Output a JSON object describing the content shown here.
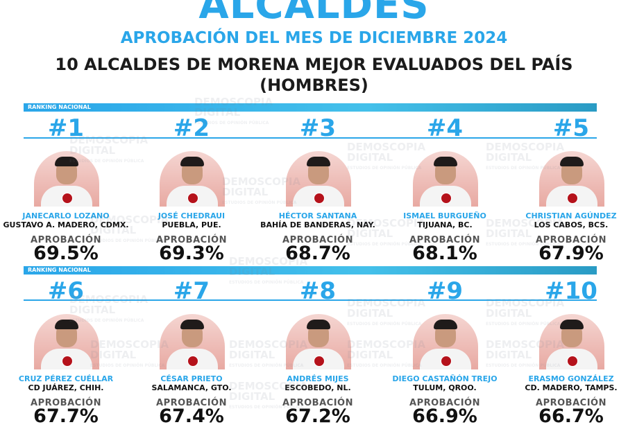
{
  "header": {
    "title": "ALCALDES",
    "subtitle": "APROBACIÓN DEL MES DE DICIEMBRE 2024",
    "headline_line1": "10 ALCALDES DE MORENA MEJOR EVALUADOS DEL PAÍS",
    "headline_line2": "(HOMBRES)"
  },
  "ranking_label": "RANKING NACIONAL",
  "approval_label": "APROBACIÓN",
  "watermark": {
    "line1": "DEMOSCOPIA",
    "line2": "DIGITAL",
    "tag": "ESTUDIOS DE OPINIÓN PÚBLICA"
  },
  "colors": {
    "accent": "#2aa6e9",
    "text": "#111111",
    "photo_bg": "#e8a9a2",
    "party_badge": "#b5121b"
  },
  "mayors": [
    {
      "rank": "#1",
      "name": "JANECARLO LOZANO",
      "city": "GUSTAVO A. MADERO, CDMX.",
      "approval": "69.5%"
    },
    {
      "rank": "#2",
      "name": "JOSÉ CHEDRAUI",
      "city": "PUEBLA, PUE.",
      "approval": "69.3%"
    },
    {
      "rank": "#3",
      "name": "HÉCTOR SANTANA",
      "city": "BAHÍA DE BANDERAS, NAY.",
      "approval": "68.7%"
    },
    {
      "rank": "#4",
      "name": "ISMAEL BURGUEÑO",
      "city": "TIJUANA, BC.",
      "approval": "68.1%"
    },
    {
      "rank": "#5",
      "name": "CHRISTIAN AGÚNDEZ",
      "city": "LOS CABOS, BCS.",
      "approval": "67.9%"
    },
    {
      "rank": "#6",
      "name": "CRUZ PÉREZ CUÉLLAR",
      "city": "CD JUÁREZ, CHIH.",
      "approval": "67.7%"
    },
    {
      "rank": "#7",
      "name": "CÉSAR PRIETO",
      "city": "SALAMANCA, GTO.",
      "approval": "67.4%"
    },
    {
      "rank": "#8",
      "name": "ANDRÉS MIJES",
      "city": "ESCOBEDO, NL.",
      "approval": "67.2%"
    },
    {
      "rank": "#9",
      "name": "DIEGO CASTAÑÓN TREJO",
      "city": "TULUM, QROO.",
      "approval": "66.9%"
    },
    {
      "rank": "#10",
      "name": "ERASMO GONZÁLEZ",
      "city": "CD. MADERO, TAMPS.",
      "approval": "66.7%"
    }
  ]
}
